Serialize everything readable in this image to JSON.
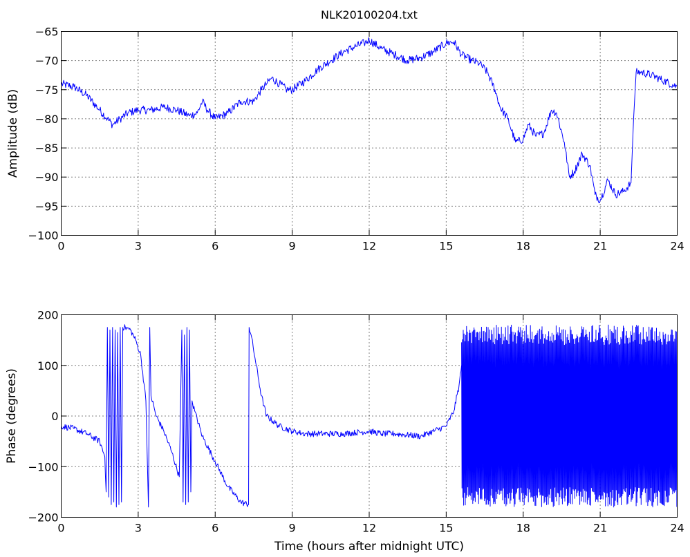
{
  "figure": {
    "title": "NLK20100204.txt",
    "xlabel": "Time (hours after midnight UTC)"
  },
  "chart_data": [
    {
      "type": "line",
      "title": "NLK20100204.txt",
      "xlabel": "",
      "ylabel": "Amplitude (dB)",
      "xlim": [
        0,
        24
      ],
      "ylim": [
        -100,
        -65
      ],
      "xticks": [
        "0",
        "3",
        "6",
        "9",
        "12",
        "15",
        "18",
        "21",
        "24"
      ],
      "yticks": [
        "-65",
        "-70",
        "-75",
        "-80",
        "-85",
        "-90",
        "-95",
        "-100"
      ],
      "grid": true,
      "series": [
        {
          "color": "#0000ff",
          "x": [
            0,
            0.5,
            1.0,
            1.5,
            1.8,
            2.0,
            2.3,
            2.6,
            3.0,
            3.5,
            4.0,
            4.5,
            5.0,
            5.3,
            5.5,
            5.7,
            6.0,
            6.5,
            7.0,
            7.5,
            7.8,
            8.0,
            8.2,
            8.5,
            8.8,
            9.0,
            9.5,
            10.0,
            10.5,
            11.0,
            11.5,
            11.8,
            12.0,
            12.5,
            13.0,
            13.5,
            14.0,
            14.5,
            15.0,
            15.3,
            15.6,
            16.0,
            16.3,
            16.6,
            16.9,
            17.1,
            17.4,
            17.7,
            18.0,
            18.2,
            18.5,
            18.8,
            19.1,
            19.3,
            19.6,
            19.8,
            20.0,
            20.3,
            20.6,
            20.8,
            21.0,
            21.3,
            21.6,
            21.9,
            22.2,
            22.3,
            22.4,
            22.6,
            23.0,
            23.5,
            24.0
          ],
          "values": [
            -74,
            -74.5,
            -76,
            -78.5,
            -80,
            -81,
            -80,
            -79,
            -78.5,
            -78.5,
            -78,
            -78.5,
            -79.5,
            -79,
            -77,
            -78.5,
            -80,
            -79,
            -77,
            -77,
            -75,
            -74,
            -73,
            -74,
            -75,
            -75,
            -73.5,
            -71.5,
            -70,
            -68.5,
            -67.5,
            -67,
            -66.5,
            -68,
            -69,
            -70,
            -69.5,
            -68.5,
            -67,
            -66.8,
            -69,
            -70,
            -70.5,
            -72,
            -75,
            -78,
            -80,
            -84,
            -83.5,
            -81,
            -83,
            -82.5,
            -78.5,
            -79,
            -84,
            -90,
            -89,
            -86,
            -88,
            -93,
            -94,
            -90.5,
            -93,
            -92.5,
            -91,
            -80,
            -72,
            -72,
            -72.5,
            -73.5,
            -74.5
          ]
        }
      ]
    },
    {
      "type": "line",
      "title": "",
      "xlabel": "Time (hours after midnight UTC)",
      "ylabel": "Phase (degrees)",
      "xlim": [
        0,
        24
      ],
      "ylim": [
        -200,
        200
      ],
      "xticks": [
        "0",
        "3",
        "6",
        "9",
        "12",
        "15",
        "18",
        "21",
        "24"
      ],
      "yticks": [
        "200",
        "100",
        "0",
        "-100",
        "-200"
      ],
      "grid": true,
      "series": [
        {
          "color": "#0000ff",
          "x": [
            0,
            0.5,
            1.0,
            1.5,
            1.7,
            1.75,
            1.8,
            1.85,
            1.9,
            1.95,
            2.0,
            2.05,
            2.1,
            2.15,
            2.2,
            2.25,
            2.3,
            2.35,
            2.4,
            2.5,
            2.7,
            2.9,
            3.1,
            3.3,
            3.4,
            3.45,
            3.5,
            3.7,
            4.0,
            4.3,
            4.6,
            4.7,
            4.75,
            4.8,
            4.85,
            4.9,
            4.95,
            5.0,
            5.05,
            5.1,
            5.2,
            5.5,
            6.0,
            6.5,
            7.0,
            7.3,
            7.32,
            7.4,
            7.6,
            7.8,
            8.0,
            8.5,
            9.0,
            9.5,
            10.0,
            11.0,
            12.0,
            12.5,
            13.0,
            14.0,
            15.0,
            15.3,
            15.5,
            15.6
          ],
          "values": [
            -20,
            -25,
            -35,
            -50,
            -80,
            -150,
            175,
            -160,
            170,
            -175,
            175,
            -170,
            170,
            -180,
            165,
            -175,
            175,
            -170,
            175,
            175,
            170,
            150,
            120,
            30,
            -180,
            175,
            40,
            0,
            -30,
            -70,
            -120,
            170,
            -170,
            160,
            -175,
            175,
            -170,
            170,
            -150,
            30,
            10,
            -40,
            -90,
            -140,
            -170,
            -175,
            175,
            160,
            100,
            40,
            0,
            -20,
            -30,
            -35,
            -35,
            -35,
            -30,
            -35,
            -35,
            -40,
            -20,
            10,
            60,
            100
          ]
        },
        {
          "color": "#0000ff",
          "kind": "oscillation",
          "x_start": 15.6,
          "x_end": 24,
          "values": [
            -180,
            180
          ]
        }
      ]
    }
  ]
}
